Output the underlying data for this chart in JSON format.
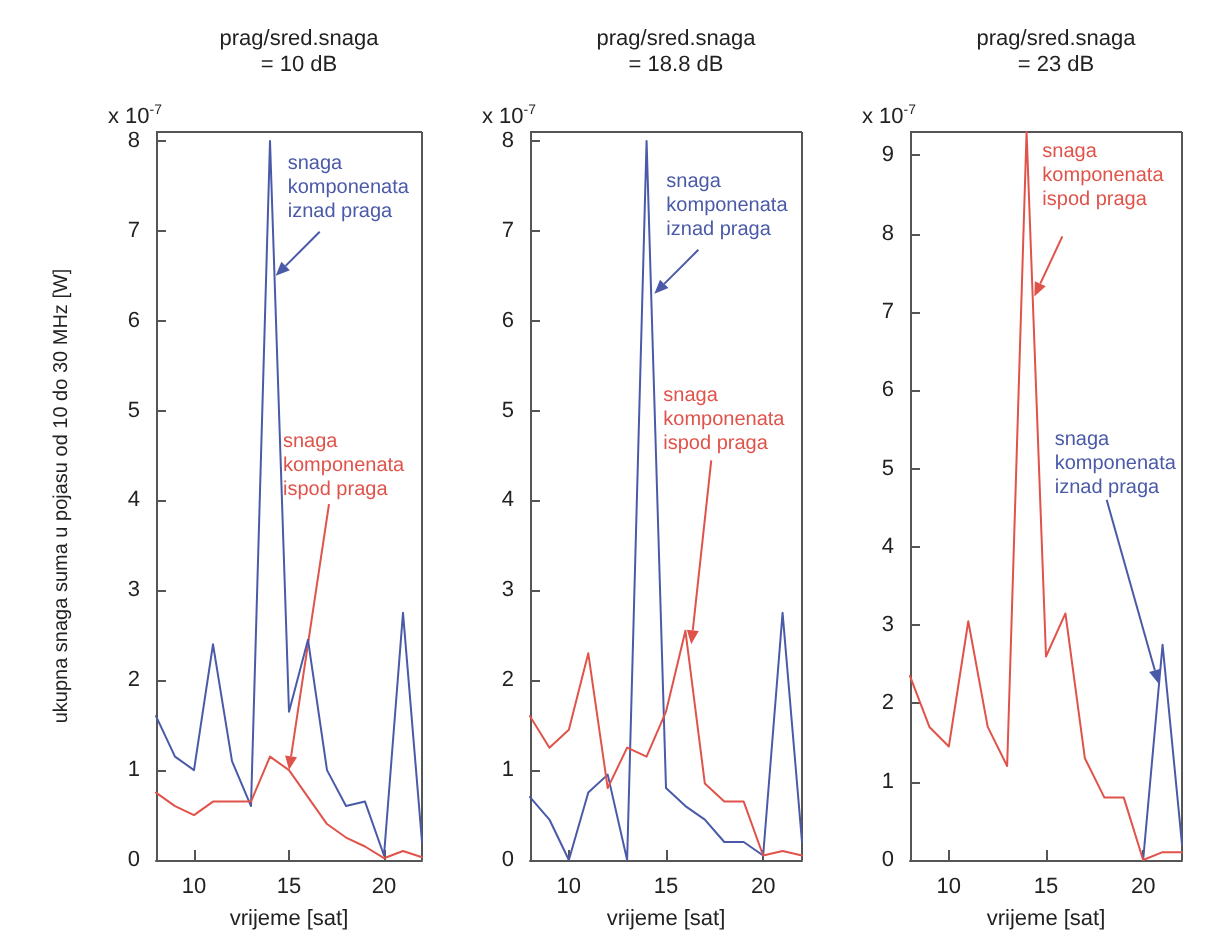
{
  "chart_data": [
    {
      "type": "line",
      "title": "prag/sred.snaga\n= 10 dB",
      "xlabel": "vrijeme [sat]",
      "ylabel": "ukupna snaga suma u pojasu od 10 do 30 MHz [W]",
      "x": [
        8,
        9,
        10,
        11,
        12,
        13,
        14,
        15,
        16,
        17,
        18,
        19,
        20,
        21,
        22
      ],
      "xlim": [
        8,
        22
      ],
      "xticks": [
        10,
        15,
        20
      ],
      "ylim": [
        0,
        8.1
      ],
      "yticks": [
        0,
        1,
        2,
        3,
        4,
        5,
        6,
        7,
        8
      ],
      "grid": false,
      "marker": "none",
      "series": [
        {
          "color": "#4a5aa8",
          "values": [
            1.6,
            1.15,
            1.0,
            2.4,
            1.1,
            0.6,
            8.0,
            1.65,
            2.45,
            1.0,
            0.6,
            0.65,
            0.05,
            2.75,
            0.2
          ]
        },
        {
          "color": "#e0534a",
          "values": [
            0.75,
            0.6,
            0.5,
            0.65,
            0.65,
            0.65,
            1.15,
            1.0,
            0.7,
            0.4,
            0.25,
            0.15,
            0.02,
            0.1,
            0.03
          ]
        }
      ],
      "annotations": [
        {
          "text": "snaga\nkomponenata\niznad praga",
          "x": 14.3,
          "y": 6.5
        },
        {
          "text": "snaga\nkomponenata\nispod praga",
          "x": 15,
          "y": 1.0
        },
        "x 10$^{-7}$"
      ]
    },
    {
      "type": "line",
      "title": "prag/sred.snaga\n= 18.8 dB",
      "xlabel": "vrijeme [sat]",
      "x": [
        8,
        9,
        10,
        11,
        12,
        13,
        14,
        15,
        16,
        17,
        18,
        19,
        20,
        21,
        22
      ],
      "xlim": [
        8,
        22
      ],
      "xticks": [
        10,
        15,
        20
      ],
      "ylim": [
        0,
        8.1
      ],
      "yticks": [
        0,
        1,
        2,
        3,
        4,
        5,
        6,
        7,
        8
      ],
      "grid": false,
      "marker": "none",
      "series": [
        {
          "color": "#4a5aa8",
          "values": [
            0.7,
            0.45,
            0.0,
            0.75,
            0.95,
            0.0,
            8.0,
            0.8,
            0.6,
            0.45,
            0.2,
            0.2,
            0.05,
            2.75,
            0.2
          ]
        },
        {
          "color": "#e0534a",
          "values": [
            1.6,
            1.25,
            1.45,
            2.3,
            0.8,
            1.25,
            1.15,
            1.65,
            2.55,
            0.85,
            0.65,
            0.65,
            0.05,
            0.1,
            0.05
          ]
        }
      ],
      "annotations": [
        {
          "text": "snaga\nkomponenata\niznad praga",
          "x": 14.4,
          "y": 6.3
        },
        {
          "text": "snaga\nkomponenata\nispod praga",
          "x": 16.3,
          "y": 2.4
        },
        "x 10$^{-7}$"
      ]
    },
    {
      "type": "line",
      "title": "prag/sred.snaga\n= 23 dB",
      "xlabel": "vrijeme [sat]",
      "x": [
        8,
        9,
        10,
        11,
        12,
        13,
        14,
        15,
        16,
        17,
        18,
        19,
        20,
        21,
        22
      ],
      "xlim": [
        8,
        22
      ],
      "xticks": [
        10,
        15,
        20
      ],
      "ylim": [
        0,
        9.3
      ],
      "yticks": [
        0,
        1,
        2,
        3,
        4,
        5,
        6,
        7,
        8,
        9
      ],
      "grid": false,
      "marker": "none",
      "series": [
        {
          "color": "#4a5aa8",
          "values": [
            null,
            null,
            null,
            null,
            null,
            null,
            null,
            null,
            null,
            null,
            null,
            null,
            0.0,
            2.75,
            0.2
          ]
        },
        {
          "color": "#e0534a",
          "values": [
            2.35,
            1.7,
            1.45,
            3.05,
            1.7,
            1.2,
            9.3,
            2.6,
            3.15,
            1.3,
            0.8,
            0.8,
            0.0,
            0.1,
            0.1
          ]
        }
      ],
      "annotations": [
        {
          "text": "snaga\nkomponenata\niznad praga",
          "x": 20.8,
          "y": 2.25
        },
        {
          "text": "snaga\nkomponenata\nispod praga",
          "x": 14.4,
          "y": 7.2
        },
        "x 10$^{-7}$"
      ]
    }
  ]
}
